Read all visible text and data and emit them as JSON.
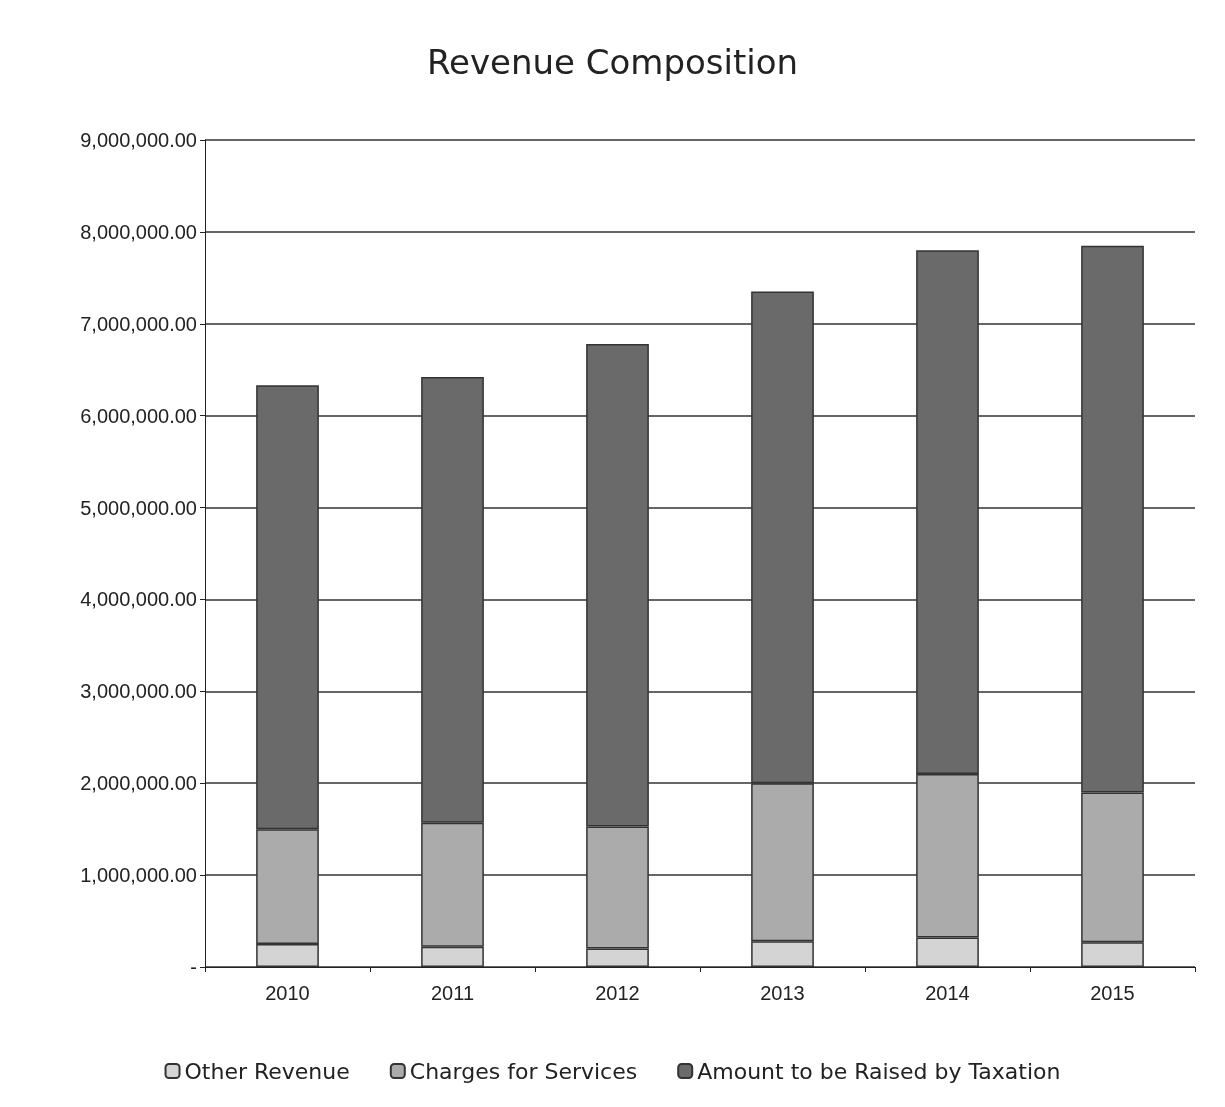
{
  "chart_data": {
    "type": "bar",
    "title": "Revenue Composition",
    "stacked": true,
    "categories": [
      "2010",
      "2011",
      "2012",
      "2013",
      "2014",
      "2015"
    ],
    "series": [
      {
        "name": "Other Revenue",
        "color": "#d4d4d4",
        "values": [
          250000,
          220000,
          200000,
          280000,
          320000,
          270000
        ]
      },
      {
        "name": "Charges for Services",
        "color": "#ababab",
        "values": [
          1250000,
          1350000,
          1330000,
          1720000,
          1780000,
          1630000
        ]
      },
      {
        "name": "Amount to be Raised by Taxation",
        "color": "#6a6a6a",
        "values": [
          4830000,
          4850000,
          5250000,
          5350000,
          5700000,
          5950000
        ]
      }
    ],
    "ylim": [
      0,
      9000000
    ],
    "yticks": [
      {
        "value": 0,
        "label": "-"
      },
      {
        "value": 1000000,
        "label": "1,000,000.00"
      },
      {
        "value": 2000000,
        "label": "2,000,000.00"
      },
      {
        "value": 3000000,
        "label": "3,000,000.00"
      },
      {
        "value": 4000000,
        "label": "4,000,000.00"
      },
      {
        "value": 5000000,
        "label": "5,000,000.00"
      },
      {
        "value": 6000000,
        "label": "6,000,000.00"
      },
      {
        "value": 7000000,
        "label": "7,000,000.00"
      },
      {
        "value": 8000000,
        "label": "8,000,000.00"
      },
      {
        "value": 9000000,
        "label": "9,000,000.00"
      }
    ],
    "grid": "y",
    "legend": "bottom"
  }
}
